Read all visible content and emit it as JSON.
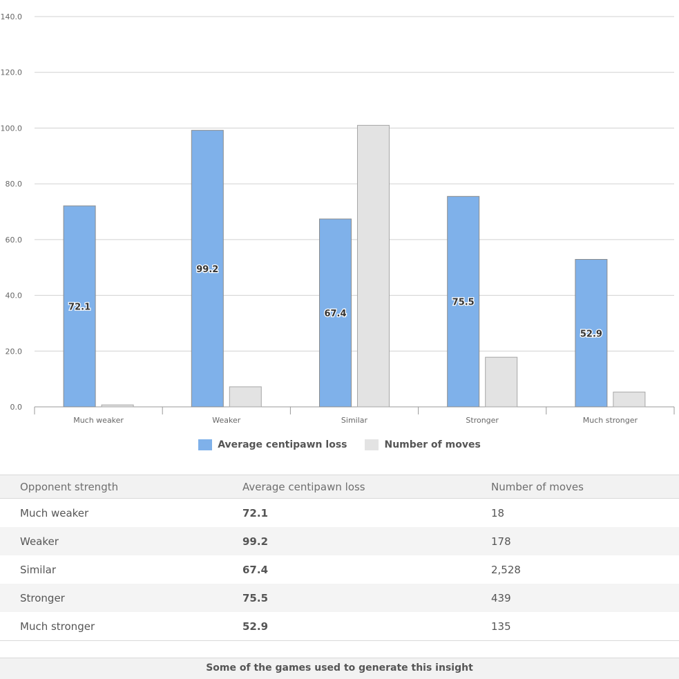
{
  "chart_data": {
    "type": "bar",
    "categories": [
      "Much weaker",
      "Weaker",
      "Similar",
      "Stronger",
      "Much stronger"
    ],
    "series": [
      {
        "name": "Average centipawn loss",
        "values": [
          72.1,
          99.2,
          67.4,
          75.5,
          52.9
        ],
        "color": "#7fb1ea",
        "data_labels": [
          "72.1",
          "99.2",
          "67.4",
          "75.5",
          "52.9"
        ]
      },
      {
        "name": "Number of moves",
        "values": [
          0.7,
          7.2,
          101.0,
          17.8,
          5.3
        ],
        "color": "#e3e3e3"
      }
    ],
    "yticks": [
      "0.0",
      "20.0",
      "40.0",
      "60.0",
      "80.0",
      "100.0",
      "120.0",
      "140.0"
    ],
    "ylim": [
      0,
      140
    ],
    "grid": true,
    "legend_position": "bottom"
  },
  "table": {
    "headers": [
      "Opponent strength",
      "Average centipawn loss",
      "Number of moves"
    ],
    "rows": [
      {
        "strength": "Much weaker",
        "acpl": "72.1",
        "moves": "18"
      },
      {
        "strength": "Weaker",
        "acpl": "99.2",
        "moves": "178"
      },
      {
        "strength": "Similar",
        "acpl": "67.4",
        "moves": "2,528"
      },
      {
        "strength": "Stronger",
        "acpl": "75.5",
        "moves": "439"
      },
      {
        "strength": "Much stronger",
        "acpl": "52.9",
        "moves": "135"
      }
    ]
  },
  "footer": {
    "text": "Some of the games used to generate this insight"
  }
}
